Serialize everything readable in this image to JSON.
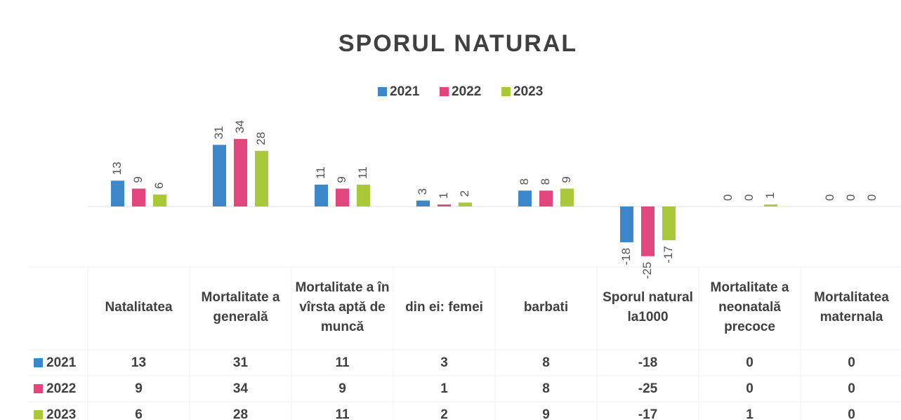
{
  "chart_data": {
    "type": "bar",
    "title": "SPORUL NATURAL",
    "categories": [
      "Natalitatea",
      "Mortalitate a generală",
      "Mortalitate a în vîrsta aptă de muncă",
      "din ei: femei",
      "barbati",
      "Sporul natural la1000",
      "Mortalitate a neonatală precoce",
      "Mortalitatea maternala"
    ],
    "series": [
      {
        "name": "2021",
        "color": "#3b87c9",
        "values": [
          13,
          31,
          11,
          3,
          8,
          -18,
          0,
          0
        ]
      },
      {
        "name": "2022",
        "color": "#e2467c",
        "values": [
          9,
          34,
          9,
          1,
          8,
          -25,
          0,
          0
        ]
      },
      {
        "name": "2023",
        "color": "#a9c93b",
        "values": [
          6,
          28,
          11,
          2,
          9,
          -17,
          1,
          0
        ]
      }
    ],
    "legend": "top",
    "data_table": true
  }
}
